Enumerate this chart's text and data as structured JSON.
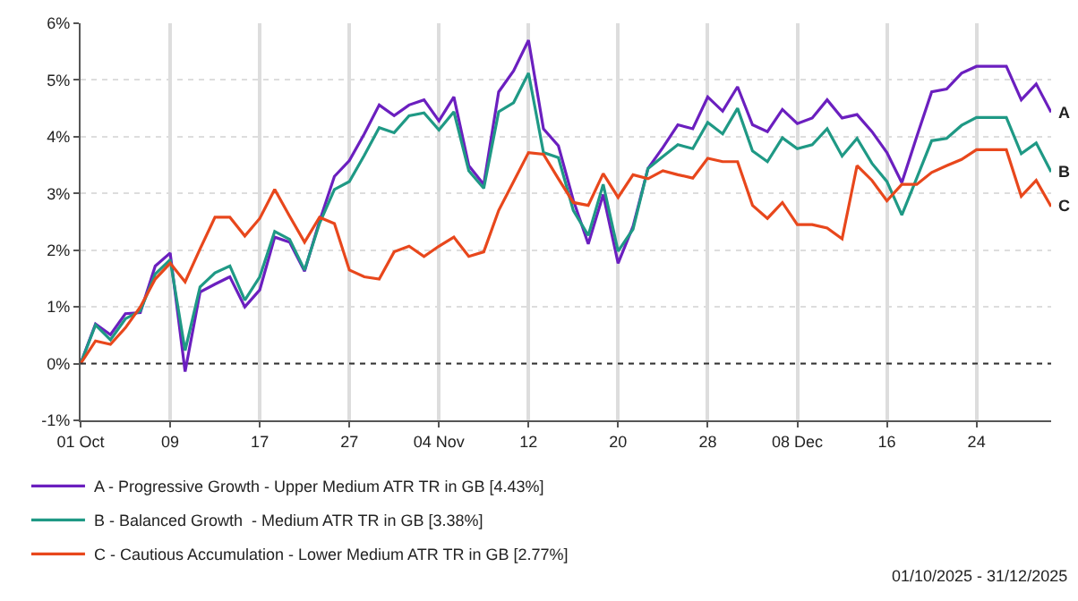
{
  "chart_data": {
    "type": "line",
    "categories": [
      "01 Oct",
      null,
      null,
      null,
      null,
      null,
      "09",
      null,
      null,
      null,
      null,
      null,
      "17",
      null,
      null,
      null,
      null,
      null,
      "27",
      null,
      null,
      null,
      null,
      null,
      "04 Nov",
      null,
      null,
      null,
      null,
      null,
      "12",
      null,
      null,
      null,
      null,
      null,
      "20",
      null,
      null,
      null,
      null,
      null,
      "28",
      null,
      null,
      null,
      null,
      null,
      "08 Dec",
      null,
      null,
      null,
      null,
      null,
      "16",
      null,
      null,
      null,
      null,
      null,
      "24",
      null,
      null,
      null,
      null,
      null
    ],
    "series": [
      {
        "name": "A - Progressive Growth - Upper Medium ATR TR in GB [4.43%]",
        "color": "#6b1fbf",
        "values": [
          0,
          0.7,
          0.51,
          0.88,
          0.9,
          1.72,
          1.95,
          -0.14,
          1.26,
          1.4,
          1.53,
          1.0,
          1.3,
          2.23,
          2.14,
          1.63,
          2.51,
          3.3,
          3.58,
          4.05,
          4.56,
          4.37,
          4.56,
          4.65,
          4.28,
          4.7,
          3.49,
          3.16,
          4.79,
          5.16,
          5.7,
          4.14,
          3.84,
          2.88,
          2.11,
          2.98,
          1.77,
          2.42,
          3.44,
          3.81,
          4.21,
          4.14,
          4.7,
          4.45,
          4.88,
          4.21,
          4.09,
          4.48,
          4.23,
          4.33,
          4.65,
          4.33,
          4.39,
          4.09,
          3.72,
          3.19,
          4.0,
          4.79,
          4.84,
          5.12,
          5.24,
          5.24,
          5.24,
          4.65,
          4.93,
          4.43
        ]
      },
      {
        "name": "B - Balanced Growth  - Medium ATR TR in GB [3.38%]",
        "color": "#1f9985",
        "values": [
          0,
          0.68,
          0.42,
          0.79,
          0.93,
          1.58,
          1.83,
          0.23,
          1.35,
          1.6,
          1.72,
          1.12,
          1.53,
          2.33,
          2.19,
          1.65,
          2.47,
          3.07,
          3.21,
          3.67,
          4.16,
          4.07,
          4.37,
          4.42,
          4.12,
          4.44,
          3.4,
          3.09,
          4.44,
          4.6,
          5.12,
          3.72,
          3.63,
          2.7,
          2.26,
          3.16,
          1.98,
          2.37,
          3.44,
          3.65,
          3.86,
          3.79,
          4.25,
          4.05,
          4.5,
          3.75,
          3.56,
          3.98,
          3.79,
          3.86,
          4.14,
          3.66,
          3.97,
          3.53,
          3.21,
          2.62,
          3.27,
          3.93,
          3.97,
          4.2,
          4.34,
          4.34,
          4.34,
          3.7,
          3.89,
          3.38
        ]
      },
      {
        "name": "C - Cautious Accumulation - Lower Medium ATR TR in GB [2.77%]",
        "color": "#e8471c",
        "values": [
          0,
          0.4,
          0.34,
          0.63,
          1.0,
          1.49,
          1.77,
          1.44,
          2.02,
          2.58,
          2.58,
          2.25,
          2.56,
          3.07,
          2.6,
          2.14,
          2.58,
          2.47,
          1.65,
          1.53,
          1.49,
          1.97,
          2.07,
          1.89,
          2.07,
          2.23,
          1.89,
          1.97,
          2.7,
          3.21,
          3.72,
          3.69,
          3.26,
          2.84,
          2.79,
          3.35,
          2.93,
          3.33,
          3.26,
          3.4,
          3.33,
          3.27,
          3.62,
          3.56,
          3.56,
          2.79,
          2.56,
          2.84,
          2.45,
          2.45,
          2.39,
          2.2,
          3.49,
          3.23,
          2.87,
          3.16,
          3.16,
          3.37,
          3.49,
          3.6,
          3.77,
          3.77,
          3.77,
          2.95,
          3.23,
          2.77
        ]
      }
    ],
    "ylim": [
      -1,
      6
    ],
    "yticks": [
      {
        "value": -1,
        "label": "-1%"
      },
      {
        "value": 0,
        "label": "0%"
      },
      {
        "value": 1,
        "label": "1%"
      },
      {
        "value": 2,
        "label": "2%"
      },
      {
        "value": 3,
        "label": "3%"
      },
      {
        "value": 4,
        "label": "4%"
      },
      {
        "value": 5,
        "label": "5%"
      },
      {
        "value": 6,
        "label": "6%"
      }
    ],
    "ref_lines": [
      {
        "axis": "y",
        "value": 0,
        "color": "#333333",
        "line_style": "dotted"
      }
    ],
    "annotations": [
      "A",
      "B",
      "C",
      "01/10/2025 - 31/12/2025"
    ],
    "grid": true,
    "legend": "bottom",
    "marker": "none",
    "line_style": "solid"
  }
}
